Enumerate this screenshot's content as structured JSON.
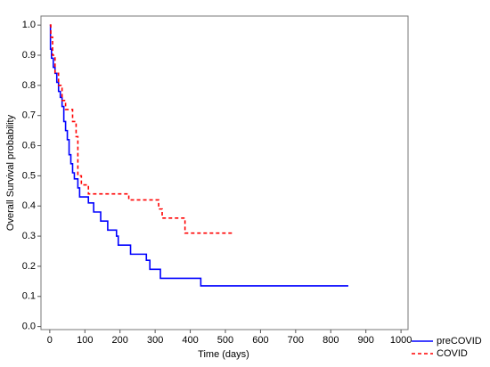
{
  "chart_data": {
    "type": "step",
    "x_label": "Time (days)",
    "y_label": "Overall Survival probability",
    "xlim": [
      -25,
      1020
    ],
    "xticks": [
      0,
      100,
      200,
      300,
      400,
      500,
      600,
      700,
      800,
      900,
      1000
    ],
    "ylim": [
      -0.01,
      1.03
    ],
    "yticks": [
      {
        "value": 0,
        "label": "0.0"
      },
      {
        "value": 0.1,
        "label": "0.1"
      },
      {
        "value": 0.2,
        "label": "0.2"
      },
      {
        "value": 0.3,
        "label": "0.3"
      },
      {
        "value": 0.4,
        "label": "0.4"
      },
      {
        "value": 0.5,
        "label": "0.5"
      },
      {
        "value": 0.6,
        "label": "0.6"
      },
      {
        "value": 0.7,
        "label": "0.7"
      },
      {
        "value": 0.8,
        "label": "0.8"
      },
      {
        "value": 0.9,
        "label": "0.9"
      },
      {
        "value": 1,
        "label": "1.0"
      }
    ],
    "legend": "bottom-right-outside",
    "series": [
      {
        "name": "preCOVID",
        "color": "#0000ff",
        "dash": "solid",
        "x": [
          0,
          2,
          5,
          10,
          15,
          20,
          25,
          30,
          35,
          40,
          45,
          50,
          55,
          60,
          65,
          70,
          80,
          85,
          110,
          125,
          145,
          165,
          190,
          195,
          230,
          275,
          285,
          315,
          430,
          850
        ],
        "values": [
          1.0,
          0.92,
          0.89,
          0.86,
          0.84,
          0.81,
          0.78,
          0.76,
          0.73,
          0.68,
          0.65,
          0.62,
          0.57,
          0.54,
          0.51,
          0.49,
          0.46,
          0.43,
          0.41,
          0.38,
          0.35,
          0.32,
          0.3,
          0.27,
          0.24,
          0.22,
          0.19,
          0.16,
          0.135,
          0.135
        ]
      },
      {
        "name": "COVID",
        "color": "#ff0000",
        "dash": "dashed",
        "x": [
          0,
          3,
          8,
          15,
          25,
          35,
          45,
          65,
          75,
          80,
          90,
          110,
          225,
          310,
          320,
          385,
          525
        ],
        "values": [
          1.0,
          0.96,
          0.9,
          0.84,
          0.8,
          0.75,
          0.72,
          0.68,
          0.63,
          0.5,
          0.47,
          0.44,
          0.42,
          0.39,
          0.36,
          0.31,
          0.31
        ]
      }
    ]
  }
}
